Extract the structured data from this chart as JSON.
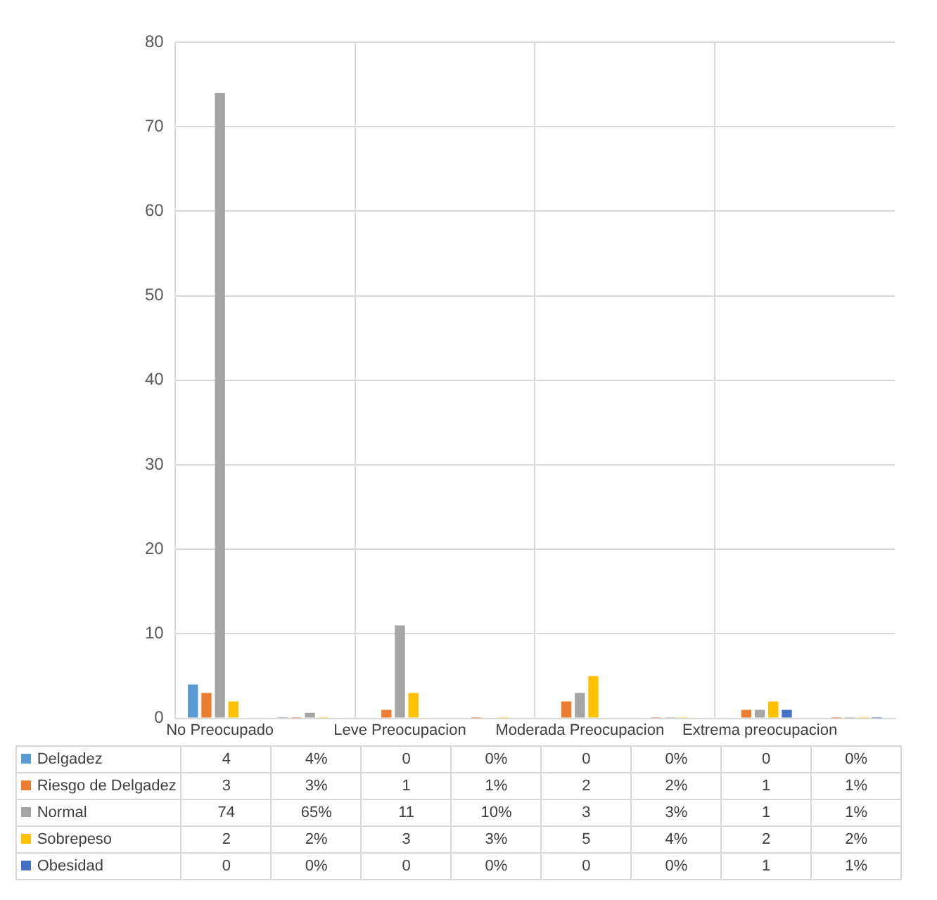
{
  "chart_data": {
    "type": "bar",
    "categories": [
      "No Preocupado",
      null,
      "Leve Preocupacion",
      null,
      "Moderada Preocupacion",
      null,
      "Extrema preocupacion",
      null
    ],
    "series": [
      {
        "name": "Delgadez",
        "color": "#5b9bd5",
        "values": [
          4,
          0.04,
          0,
          0,
          0,
          0,
          0,
          0
        ],
        "value_labels": [
          "4",
          "4%",
          "0",
          "0%",
          "0",
          "0%",
          "0",
          "0%"
        ]
      },
      {
        "name": "Riesgo de Delgadez",
        "color": "#ed7d31",
        "values": [
          3,
          0.03,
          1,
          0.01,
          2,
          0.02,
          1,
          0.01
        ],
        "value_labels": [
          "3",
          "3%",
          "1",
          "1%",
          "2",
          "2%",
          "1",
          "1%"
        ]
      },
      {
        "name": "Normal",
        "color": "#a5a5a5",
        "values": [
          74,
          0.65,
          11,
          0.1,
          3,
          0.03,
          1,
          0.01
        ],
        "value_labels": [
          "74",
          "65%",
          "11",
          "10%",
          "3",
          "3%",
          "1",
          "1%"
        ]
      },
      {
        "name": "Sobrepeso",
        "color": "#ffc000",
        "values": [
          2,
          0.02,
          3,
          0.03,
          5,
          0.04,
          2,
          0.02
        ],
        "value_labels": [
          "2",
          "2%",
          "3",
          "3%",
          "5",
          "4%",
          "2",
          "2%"
        ]
      },
      {
        "name": "Obesidad",
        "color": "#4472c4",
        "values": [
          0,
          0,
          0,
          0,
          0,
          0,
          1,
          0.01
        ],
        "value_labels": [
          "0",
          "0%",
          "0",
          "0%",
          "0",
          "0%",
          "1",
          "1%"
        ]
      }
    ],
    "ylim": [
      0,
      80
    ],
    "yticks": [
      0,
      10,
      20,
      30,
      40,
      50,
      60,
      70,
      80
    ],
    "grid": true,
    "legend": "bottom"
  }
}
